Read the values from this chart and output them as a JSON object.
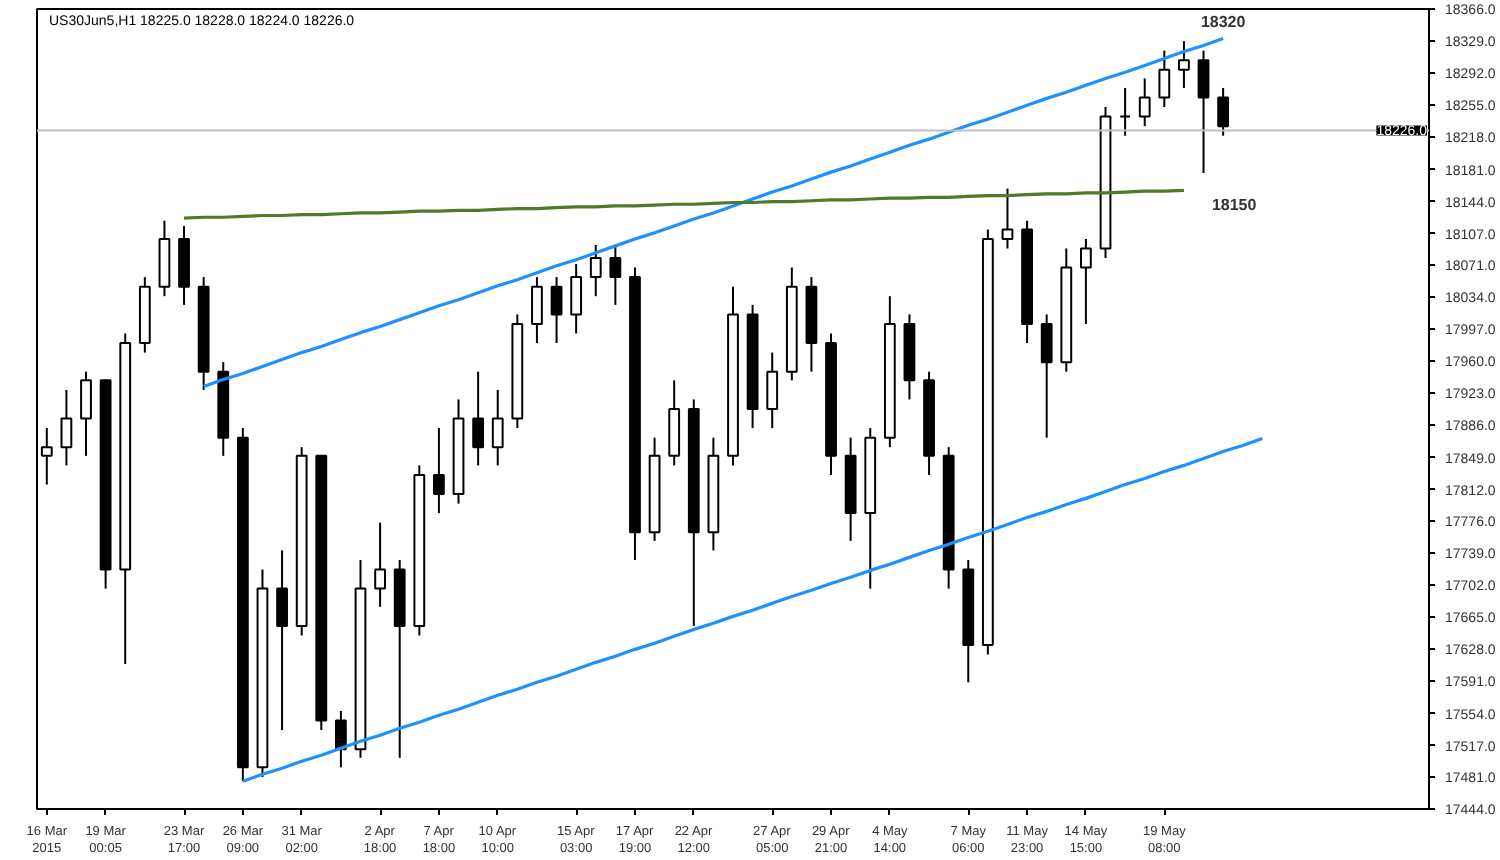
{
  "chart_data": {
    "type": "candlestick",
    "title": "US30Jun5,H1  18225.0 18228.0 18224.0 18226.0",
    "categories": [
      "16 Mar 2015",
      null,
      null,
      "19 Mar 00:05",
      null,
      null,
      null,
      "23 Mar 17:00",
      null,
      null,
      "26 Mar 09:00",
      null,
      null,
      "31 Mar 02:00",
      null,
      null,
      null,
      "2 Apr 18:00",
      null,
      null,
      "7 Apr 18:00",
      null,
      null,
      "10 Apr 10:00",
      null,
      null,
      null,
      "15 Apr 03:00",
      null,
      null,
      "17 Apr 19:00",
      null,
      null,
      "22 Apr 12:00",
      null,
      null,
      null,
      "27 Apr 05:00",
      null,
      null,
      "29 Apr 21:00",
      null,
      null,
      "4 May 14:00",
      null,
      null,
      null,
      "7 May 06:00",
      null,
      null,
      "11 May 23:00",
      null,
      null,
      "14 May 15:00",
      null,
      null,
      null,
      "19 May 08:00",
      null,
      null,
      null,
      null,
      null,
      null,
      null,
      null,
      null,
      null,
      null,
      null,
      null
    ],
    "series": [
      {
        "color": "#000000",
        "ohlc": [
          [
            17851,
            17883,
            17818,
            17861
          ],
          [
            17861,
            17927,
            17840,
            17894
          ],
          [
            17894,
            17948,
            17851,
            17938
          ],
          [
            17938,
            17938,
            17698,
            17720
          ],
          [
            17720,
            17992,
            17611,
            17981
          ],
          [
            17981,
            18057,
            17970,
            18046
          ],
          [
            18046,
            18122,
            18035,
            18101
          ],
          [
            18101,
            18116,
            18025,
            18046
          ],
          [
            18046,
            18057,
            17927,
            17948
          ],
          [
            17948,
            17959,
            17851,
            17872
          ],
          [
            17872,
            17883,
            17476,
            17492
          ],
          [
            17492,
            17720,
            17481,
            17698
          ],
          [
            17698,
            17742,
            17535,
            17655
          ],
          [
            17655,
            17861,
            17644,
            17851
          ],
          [
            17851,
            17851,
            17535,
            17546
          ],
          [
            17546,
            17557,
            17492,
            17513
          ],
          [
            17513,
            17731,
            17503,
            17698
          ],
          [
            17698,
            17774,
            17677,
            17720
          ],
          [
            17720,
            17731,
            17503,
            17655
          ],
          [
            17655,
            17840,
            17644,
            17829
          ],
          [
            17829,
            17883,
            17785,
            17807
          ],
          [
            17807,
            17916,
            17796,
            17894
          ],
          [
            17894,
            17948,
            17840,
            17861
          ],
          [
            17861,
            17927,
            17840,
            17894
          ],
          [
            17894,
            18014,
            17883,
            18003
          ],
          [
            18003,
            18057,
            17981,
            18046
          ],
          [
            18046,
            18057,
            17981,
            18014
          ],
          [
            18014,
            18072,
            17992,
            18057
          ],
          [
            18057,
            18094,
            18035,
            18079
          ],
          [
            18079,
            18094,
            18025,
            18057
          ],
          [
            18057,
            18068,
            17731,
            17763
          ],
          [
            17763,
            17872,
            17753,
            17851
          ],
          [
            17851,
            17938,
            17840,
            17905
          ],
          [
            17905,
            17916,
            17655,
            17763
          ],
          [
            17763,
            17872,
            17742,
            17851
          ],
          [
            17851,
            18046,
            17840,
            18014
          ],
          [
            18014,
            18025,
            17883,
            17905
          ],
          [
            17905,
            17970,
            17883,
            17948
          ],
          [
            17948,
            18068,
            17938,
            18046
          ],
          [
            18046,
            18057,
            17948,
            17981
          ],
          [
            17981,
            17992,
            17829,
            17851
          ],
          [
            17851,
            17872,
            17753,
            17785
          ],
          [
            17785,
            17883,
            17698,
            17872
          ],
          [
            17872,
            18035,
            17861,
            18003
          ],
          [
            18003,
            18014,
            17916,
            17938
          ],
          [
            17938,
            17948,
            17829,
            17851
          ],
          [
            17851,
            17861,
            17698,
            17720
          ],
          [
            17720,
            17731,
            17590,
            17633
          ],
          [
            17633,
            18112,
            17622,
            18101
          ],
          [
            18101,
            18159,
            18090,
            18112
          ],
          [
            18112,
            18122,
            17981,
            18003
          ],
          [
            18003,
            18014,
            17872,
            17959
          ],
          [
            17959,
            18090,
            17948,
            18068
          ],
          [
            18068,
            18101,
            18003,
            18090
          ],
          [
            18090,
            18253,
            18079,
            18242
          ],
          [
            18242,
            18275,
            18220,
            18242
          ],
          [
            18242,
            18286,
            18231,
            18264
          ],
          [
            18264,
            18318,
            18253,
            18296
          ],
          [
            18296,
            18329,
            18275,
            18307
          ],
          [
            18307,
            18318,
            18177,
            18264
          ],
          [
            18264,
            18275,
            18220,
            18231
          ],
          null,
          null,
          null,
          null,
          null,
          null,
          null,
          null,
          null,
          null
        ]
      },
      {
        "type": "line",
        "color": "#1e90ff",
        "values": [
          null,
          null,
          null,
          null,
          null,
          null,
          null,
          null,
          17931,
          17939,
          17946,
          17954,
          17962,
          17970,
          17977,
          17985,
          17993,
          18000,
          18008,
          18016,
          18024,
          18031,
          18039,
          18047,
          18054,
          18062,
          18070,
          18077,
          18085,
          18093,
          18101,
          18108,
          18116,
          18124,
          18131,
          18139,
          18147,
          18155,
          18162,
          18170,
          18178,
          18185,
          18193,
          18201,
          18209,
          18216,
          18224,
          18232,
          18239,
          18247,
          18255,
          18263,
          18270,
          18278,
          18286,
          18293,
          18301,
          18309,
          18317,
          18324,
          18332,
          null,
          null,
          null,
          null,
          null,
          null,
          null,
          null,
          null,
          null
        ]
      },
      {
        "type": "line",
        "color": "#1e90ff",
        "values": [
          null,
          null,
          null,
          null,
          null,
          null,
          null,
          null,
          null,
          null,
          17476,
          17484,
          17491,
          17499,
          17506,
          17514,
          17522,
          17529,
          17537,
          17544,
          17552,
          17559,
          17567,
          17575,
          17582,
          17590,
          17597,
          17605,
          17613,
          17620,
          17628,
          17635,
          17643,
          17651,
          17658,
          17666,
          17673,
          17681,
          17689,
          17696,
          17704,
          17711,
          17719,
          17726,
          17734,
          17742,
          17749,
          17757,
          17764,
          17772,
          17780,
          17787,
          17795,
          17802,
          17810,
          17818,
          17825,
          17833,
          17840,
          17848,
          17856,
          17863,
          17871,
          null,
          null,
          null,
          null,
          null,
          null,
          null,
          null
        ]
      },
      {
        "type": "line",
        "color": "#4f7a28",
        "values": [
          null,
          null,
          null,
          null,
          null,
          null,
          null,
          18125,
          18126,
          18126,
          18127,
          18128,
          18128,
          18129,
          18129,
          18130,
          18131,
          18131,
          18132,
          18133,
          18133,
          18134,
          18134,
          18135,
          18136,
          18136,
          18137,
          18138,
          18138,
          18139,
          18139,
          18140,
          18141,
          18141,
          18142,
          18143,
          18143,
          18144,
          18144,
          18145,
          18146,
          18146,
          18147,
          18148,
          18148,
          18149,
          18149,
          18150,
          18151,
          18151,
          18152,
          18153,
          18153,
          18154,
          18154,
          18155,
          18156,
          18156,
          18157,
          null,
          null,
          null,
          null,
          null,
          null,
          null,
          null,
          null,
          null,
          null,
          null
        ]
      }
    ],
    "annotations": [
      "18320",
      "18150"
    ],
    "ref_lines": [
      {
        "axis": "y",
        "value": 18226,
        "label": "18226.0",
        "color": "#c0c0c0"
      }
    ],
    "ylim": [
      17444,
      18366
    ],
    "yticks": [
      {
        "value": 18366,
        "label": "18366.0"
      },
      {
        "value": 18329,
        "label": "18329.0"
      },
      {
        "value": 18292,
        "label": "18292.0"
      },
      {
        "value": 18255,
        "label": "18255.0"
      },
      {
        "value": 18218,
        "label": "18218.0"
      },
      {
        "value": 18181,
        "label": "18181.0"
      },
      {
        "value": 18144,
        "label": "18144.0"
      },
      {
        "value": 18107,
        "label": "18107.0"
      },
      {
        "value": 18071,
        "label": "18071.0"
      },
      {
        "value": 18034,
        "label": "18034.0"
      },
      {
        "value": 17997,
        "label": "17997.0"
      },
      {
        "value": 17960,
        "label": "17960.0"
      },
      {
        "value": 17923,
        "label": "17923.0"
      },
      {
        "value": 17886,
        "label": "17886.0"
      },
      {
        "value": 17849,
        "label": "17849.0"
      },
      {
        "value": 17812,
        "label": "17812.0"
      },
      {
        "value": 17776,
        "label": "17776.0"
      },
      {
        "value": 17739,
        "label": "17739.0"
      },
      {
        "value": 17702,
        "label": "17702.0"
      },
      {
        "value": 17665,
        "label": "17665.0"
      },
      {
        "value": 17628,
        "label": "17628.0"
      },
      {
        "value": 17591,
        "label": "17591.0"
      },
      {
        "value": 17554,
        "label": "17554.0"
      },
      {
        "value": 17517,
        "label": "17517.0"
      },
      {
        "value": 17481,
        "label": "17481.0"
      },
      {
        "value": 17444,
        "label": "17444.0"
      }
    ],
    "grid": false
  }
}
